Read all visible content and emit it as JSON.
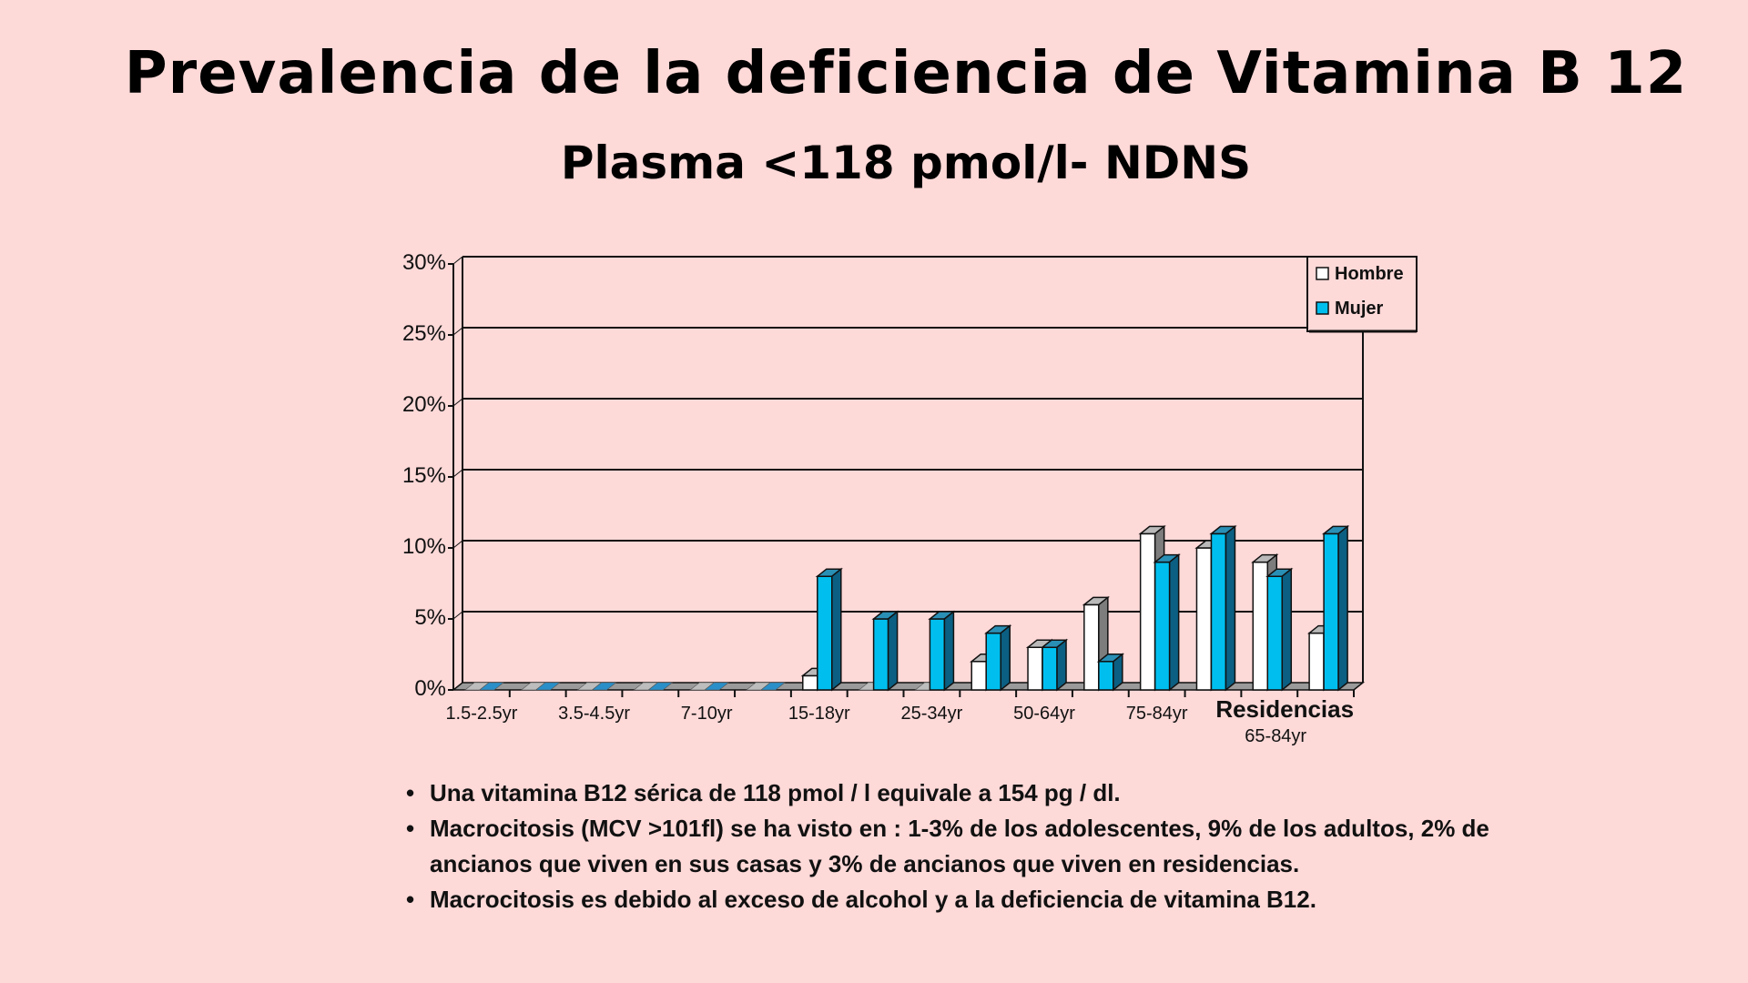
{
  "title": "Prevalencia de la deficiencia de Vitamina B 12",
  "subtitle": "Plasma <118 pmol/l- NDNS",
  "chart_data": {
    "type": "bar",
    "style": "3d-clustered",
    "categories": [
      "1.5-2.5yr",
      "",
      "3.5-4.5yr",
      "",
      "7-10yr",
      "",
      "15-18yr",
      "",
      "25-34yr",
      "",
      "50-64yr",
      "",
      "75-84yr",
      "",
      "Residencias",
      ""
    ],
    "category_sublabel": "65-84yr",
    "series": [
      {
        "name": "Hombre",
        "color": "#ffffff",
        "values": [
          0,
          0,
          0,
          0,
          0,
          0,
          1,
          0,
          0,
          2,
          3,
          6,
          11,
          10,
          9,
          4
        ]
      },
      {
        "name": "Mujer",
        "color": "#00bfef",
        "values": [
          0,
          0,
          0,
          0,
          0,
          0,
          8,
          5,
          5,
          4,
          3,
          2,
          9,
          11,
          8,
          11
        ]
      }
    ],
    "yticks": [
      "0%",
      "5%",
      "10%",
      "15%",
      "20%",
      "25%",
      "30%"
    ],
    "ylim": [
      0,
      30
    ],
    "grid": true,
    "legend": "top-right",
    "xlabel": "",
    "ylabel": ""
  },
  "bullets": [
    "Una vitamina B12 sérica de 118 pmol / l equivale a 154 pg / dl.",
    "Macrocitosis (MCV >101fl) se ha visto en : 1-3% de los adolescentes, 9% de los adultos, 2% de  ancianos que viven en sus casas y 3% de ancianos que viven en residencias.",
    "Macrocitosis es debido al exceso de alcohol y a la deficiencia de vitamina B12."
  ],
  "bullet_symbol": "•"
}
